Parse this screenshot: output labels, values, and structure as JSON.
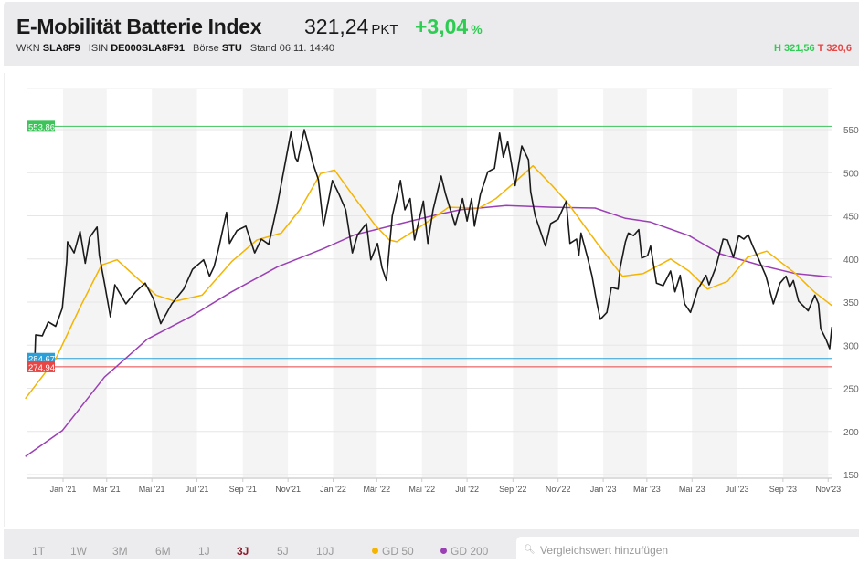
{
  "header": {
    "title": "E-Mobilität Batterie Index",
    "price": "321,24",
    "unit": "PKT",
    "change": "+3,04",
    "change_unit": "%",
    "wkn_label": "WKN",
    "wkn": "SLA8F9",
    "isin_label": "ISIN",
    "isin": "DE000SLA8F91",
    "boerse_label": "Börse",
    "boerse": "STU",
    "stand_label": "Stand",
    "stand": "06.11. 14:40",
    "high": "H 321,56",
    "low": "T 320,6"
  },
  "colors": {
    "price": "#1a1a1a",
    "gd50": "#f5b400",
    "gd200": "#9b3fb5",
    "high_line": "#3cc45a",
    "ref_blue": "#2a9fd8",
    "ref_red": "#e84545",
    "positive": "#2ecc52",
    "active_range": "#8b1a2b"
  },
  "chart_data": {
    "type": "line",
    "title": "",
    "xlabel": "",
    "ylabel": "",
    "ylim": [
      150,
      600
    ],
    "grid": true,
    "y_ticks": [
      150,
      200,
      250,
      300,
      350,
      400,
      450,
      500,
      550
    ],
    "x_ticks": [
      {
        "date": "2021-01-01",
        "label": "Jan '21"
      },
      {
        "date": "2021-03-01",
        "label": "Mär '21"
      },
      {
        "date": "2021-05-01",
        "label": "Mai '21"
      },
      {
        "date": "2021-07-01",
        "label": "Jul '21"
      },
      {
        "date": "2021-09-01",
        "label": "Sep '21"
      },
      {
        "date": "2021-11-01",
        "label": "Nov'21"
      },
      {
        "date": "2022-01-01",
        "label": "Jan '22"
      },
      {
        "date": "2022-03-01",
        "label": "Mär '22"
      },
      {
        "date": "2022-05-01",
        "label": "Mai '22"
      },
      {
        "date": "2022-07-01",
        "label": "Jul '22"
      },
      {
        "date": "2022-09-01",
        "label": "Sep '22"
      },
      {
        "date": "2022-11-01",
        "label": "Nov'22"
      },
      {
        "date": "2023-01-01",
        "label": "Jan '23"
      },
      {
        "date": "2023-03-01",
        "label": "Mär '23"
      },
      {
        "date": "2023-05-01",
        "label": "Mai '23"
      },
      {
        "date": "2023-07-01",
        "label": "Jul '23"
      },
      {
        "date": "2023-09-01",
        "label": "Sep '23"
      },
      {
        "date": "2023-11-01",
        "label": "Nov'23"
      }
    ],
    "reference_lines": [
      {
        "value": 553.86,
        "label": "553,86",
        "color": "#3cc45a"
      },
      {
        "value": 284.67,
        "label": "284,67",
        "color": "#2a9fd8"
      },
      {
        "value": 274.94,
        "label": "274,94",
        "color": "#e84545"
      }
    ],
    "series": [
      {
        "key": "price",
        "color": "#1a1a1a",
        "points": [
          [
            "2020-11-24",
            288
          ],
          [
            "2020-11-25",
            312
          ],
          [
            "2020-12-04",
            311
          ],
          [
            "2020-12-12",
            327
          ],
          [
            "2020-12-22",
            322
          ],
          [
            "2020-12-31",
            343
          ],
          [
            "2021-01-06",
            397
          ],
          [
            "2021-01-07",
            420
          ],
          [
            "2021-01-16",
            407
          ],
          [
            "2021-01-24",
            432
          ],
          [
            "2021-01-31",
            395
          ],
          [
            "2021-02-06",
            425
          ],
          [
            "2021-02-16",
            437
          ],
          [
            "2021-02-19",
            404
          ],
          [
            "2021-02-26",
            372
          ],
          [
            "2021-03-06",
            333
          ],
          [
            "2021-03-12",
            370
          ],
          [
            "2021-03-27",
            348
          ],
          [
            "2021-04-09",
            362
          ],
          [
            "2021-04-22",
            372
          ],
          [
            "2021-05-03",
            354
          ],
          [
            "2021-05-13",
            325
          ],
          [
            "2021-05-28",
            348
          ],
          [
            "2021-06-13",
            365
          ],
          [
            "2021-06-25",
            388
          ],
          [
            "2021-07-10",
            399
          ],
          [
            "2021-07-18",
            380
          ],
          [
            "2021-07-24",
            391
          ],
          [
            "2021-07-30",
            411
          ],
          [
            "2021-08-10",
            454
          ],
          [
            "2021-08-14",
            418
          ],
          [
            "2021-08-24",
            433
          ],
          [
            "2021-09-05",
            438
          ],
          [
            "2021-09-17",
            407
          ],
          [
            "2021-09-26",
            423
          ],
          [
            "2021-10-06",
            417
          ],
          [
            "2021-10-17",
            460
          ],
          [
            "2021-10-24",
            492
          ],
          [
            "2021-11-05",
            547
          ],
          [
            "2021-11-11",
            517
          ],
          [
            "2021-11-14",
            513
          ],
          [
            "2021-11-23",
            550
          ],
          [
            "2021-11-29",
            531
          ],
          [
            "2021-12-05",
            510
          ],
          [
            "2021-12-12",
            492
          ],
          [
            "2021-12-19",
            438
          ],
          [
            "2021-12-31",
            491
          ],
          [
            "2022-01-09",
            475
          ],
          [
            "2022-01-18",
            457
          ],
          [
            "2022-01-27",
            407
          ],
          [
            "2022-02-03",
            428
          ],
          [
            "2022-02-15",
            441
          ],
          [
            "2022-02-21",
            399
          ],
          [
            "2022-03-02",
            418
          ],
          [
            "2022-03-08",
            390
          ],
          [
            "2022-03-14",
            375
          ],
          [
            "2022-03-22",
            450
          ],
          [
            "2022-04-02",
            491
          ],
          [
            "2022-04-08",
            457
          ],
          [
            "2022-04-15",
            470
          ],
          [
            "2022-04-21",
            422
          ],
          [
            "2022-05-03",
            467
          ],
          [
            "2022-05-09",
            418
          ],
          [
            "2022-05-16",
            457
          ],
          [
            "2022-05-27",
            496
          ],
          [
            "2022-06-02",
            475
          ],
          [
            "2022-06-15",
            439
          ],
          [
            "2022-06-25",
            470
          ],
          [
            "2022-07-01",
            444
          ],
          [
            "2022-07-07",
            470
          ],
          [
            "2022-07-11",
            438
          ],
          [
            "2022-07-19",
            475
          ],
          [
            "2022-07-29",
            501
          ],
          [
            "2022-08-07",
            505
          ],
          [
            "2022-08-14",
            546
          ],
          [
            "2022-08-19",
            518
          ],
          [
            "2022-08-25",
            536
          ],
          [
            "2022-09-04",
            485
          ],
          [
            "2022-09-13",
            531
          ],
          [
            "2022-09-22",
            515
          ],
          [
            "2022-09-25",
            478
          ],
          [
            "2022-10-01",
            450
          ],
          [
            "2022-10-15",
            415
          ],
          [
            "2022-10-22",
            441
          ],
          [
            "2022-11-01",
            446
          ],
          [
            "2022-11-12",
            467
          ],
          [
            "2022-11-17",
            418
          ],
          [
            "2022-11-26",
            423
          ],
          [
            "2022-11-29",
            404
          ],
          [
            "2022-12-02",
            430
          ],
          [
            "2022-12-11",
            401
          ],
          [
            "2022-12-17",
            380
          ],
          [
            "2022-12-23",
            351
          ],
          [
            "2022-12-28",
            330
          ],
          [
            "2023-01-06",
            338
          ],
          [
            "2023-01-12",
            367
          ],
          [
            "2023-01-21",
            365
          ],
          [
            "2023-01-24",
            390
          ],
          [
            "2023-01-31",
            420
          ],
          [
            "2023-02-04",
            430
          ],
          [
            "2023-02-11",
            427
          ],
          [
            "2023-02-18",
            434
          ],
          [
            "2023-02-22",
            401
          ],
          [
            "2023-03-02",
            404
          ],
          [
            "2023-03-06",
            415
          ],
          [
            "2023-03-14",
            372
          ],
          [
            "2023-03-23",
            369
          ],
          [
            "2023-04-02",
            386
          ],
          [
            "2023-04-08",
            362
          ],
          [
            "2023-04-15",
            381
          ],
          [
            "2023-04-21",
            348
          ],
          [
            "2023-04-29",
            338
          ],
          [
            "2023-05-09",
            365
          ],
          [
            "2023-05-20",
            381
          ],
          [
            "2023-05-24",
            370
          ],
          [
            "2023-06-02",
            390
          ],
          [
            "2023-06-12",
            423
          ],
          [
            "2023-06-18",
            422
          ],
          [
            "2023-06-26",
            402
          ],
          [
            "2023-07-03",
            427
          ],
          [
            "2023-07-10",
            423
          ],
          [
            "2023-07-16",
            428
          ],
          [
            "2023-07-22",
            415
          ],
          [
            "2023-07-29",
            402
          ],
          [
            "2023-08-09",
            380
          ],
          [
            "2023-08-19",
            348
          ],
          [
            "2023-08-28",
            372
          ],
          [
            "2023-09-05",
            380
          ],
          [
            "2023-09-10",
            367
          ],
          [
            "2023-09-15",
            375
          ],
          [
            "2023-09-22",
            351
          ],
          [
            "2023-10-05",
            340
          ],
          [
            "2023-10-14",
            358
          ],
          [
            "2023-10-19",
            348
          ],
          [
            "2023-10-22",
            319
          ],
          [
            "2023-10-29",
            307
          ],
          [
            "2023-11-03",
            296
          ],
          [
            "2023-11-06",
            321.24
          ]
        ]
      },
      {
        "key": "gd50",
        "name": "GD 50",
        "color": "#f5b400",
        "points": [
          [
            "2020-11-11",
            238
          ],
          [
            "2020-12-22",
            284
          ],
          [
            "2021-01-24",
            344
          ],
          [
            "2021-02-22",
            393
          ],
          [
            "2021-03-15",
            399
          ],
          [
            "2021-04-16",
            374
          ],
          [
            "2021-05-07",
            358
          ],
          [
            "2021-06-01",
            351
          ],
          [
            "2021-07-08",
            358
          ],
          [
            "2021-08-17",
            397
          ],
          [
            "2021-09-20",
            422
          ],
          [
            "2021-10-23",
            430
          ],
          [
            "2021-11-17",
            457
          ],
          [
            "2021-12-15",
            499
          ],
          [
            "2022-01-03",
            503
          ],
          [
            "2022-01-30",
            471
          ],
          [
            "2022-02-27",
            439
          ],
          [
            "2022-03-18",
            422
          ],
          [
            "2022-03-28",
            420
          ],
          [
            "2022-04-21",
            433
          ],
          [
            "2022-05-12",
            445
          ],
          [
            "2022-06-06",
            460
          ],
          [
            "2022-07-17",
            459
          ],
          [
            "2022-08-09",
            470
          ],
          [
            "2022-09-01",
            487
          ],
          [
            "2022-09-28",
            508
          ],
          [
            "2022-10-24",
            485
          ],
          [
            "2022-11-14",
            465
          ],
          [
            "2022-12-24",
            418
          ],
          [
            "2023-01-27",
            380
          ],
          [
            "2023-02-24",
            383
          ],
          [
            "2023-04-02",
            400
          ],
          [
            "2023-04-27",
            386
          ],
          [
            "2023-05-22",
            365
          ],
          [
            "2023-06-18",
            374
          ],
          [
            "2023-07-15",
            402
          ],
          [
            "2023-08-10",
            409
          ],
          [
            "2023-09-18",
            383
          ],
          [
            "2023-10-13",
            362
          ],
          [
            "2023-11-06",
            346
          ]
        ]
      },
      {
        "key": "gd200",
        "name": "GD 200",
        "color": "#9b3fb5",
        "points": [
          [
            "2020-11-11",
            171
          ],
          [
            "2020-12-31",
            201
          ],
          [
            "2021-02-26",
            263
          ],
          [
            "2021-04-25",
            307
          ],
          [
            "2021-06-22",
            333
          ],
          [
            "2021-08-17",
            362
          ],
          [
            "2021-10-18",
            391
          ],
          [
            "2021-12-19",
            412
          ],
          [
            "2022-01-30",
            428
          ],
          [
            "2022-04-02",
            441
          ],
          [
            "2022-05-25",
            452
          ],
          [
            "2022-06-22",
            457
          ],
          [
            "2022-08-23",
            462
          ],
          [
            "2022-10-24",
            460
          ],
          [
            "2022-12-21",
            459
          ],
          [
            "2023-01-31",
            447
          ],
          [
            "2023-03-05",
            443
          ],
          [
            "2023-04-27",
            427
          ],
          [
            "2023-06-08",
            406
          ],
          [
            "2023-07-31",
            393
          ],
          [
            "2023-09-18",
            383
          ],
          [
            "2023-11-06",
            379
          ]
        ]
      }
    ]
  },
  "ranges": [
    "1T",
    "1W",
    "3M",
    "6M",
    "1J",
    "3J",
    "5J",
    "10J"
  ],
  "active_range": "3J",
  "indicators": {
    "gd50": "GD 50",
    "gd200": "GD 200"
  },
  "search": {
    "placeholder": "Vergleichswert hinzufügen",
    "icon": "search-icon"
  }
}
